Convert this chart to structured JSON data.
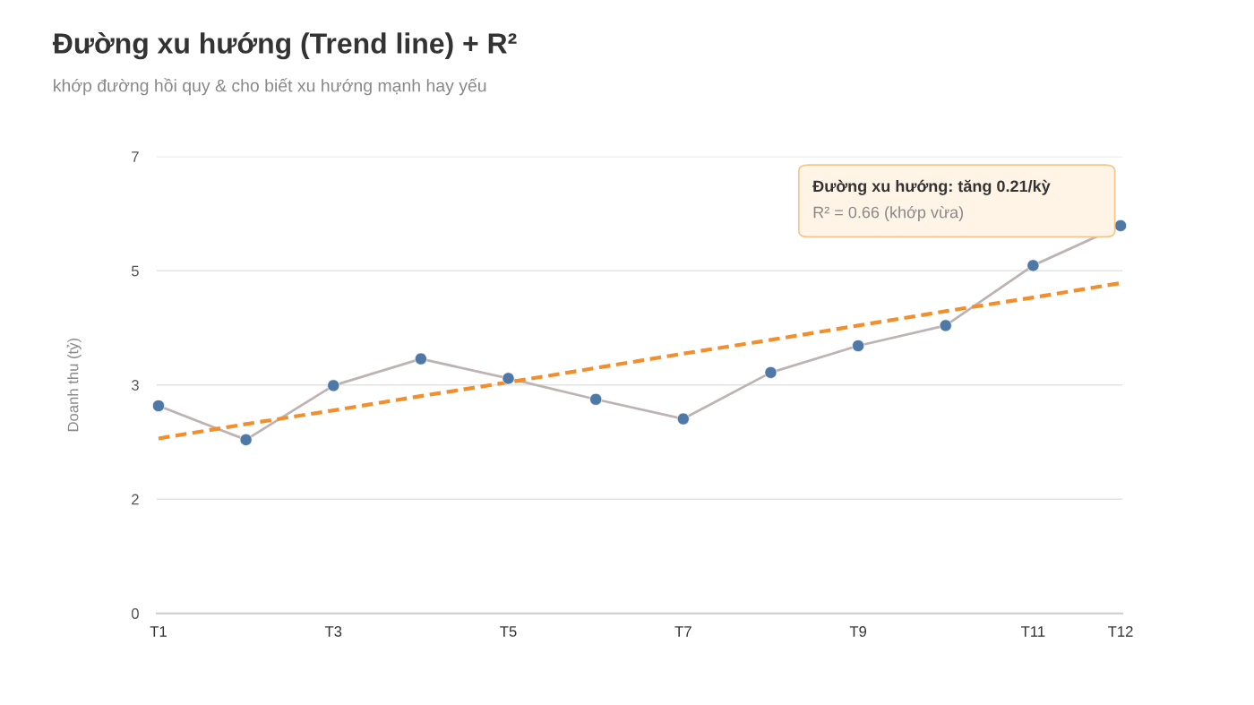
{
  "chart_data": {
    "type": "line",
    "title": "Đường xu hướng (Trend line) + R²",
    "subtitle": "khớp đường hồi quy & cho biết xu hướng mạnh hay yếu",
    "ylabel": "Doanh thu (tỷ)",
    "categories": [
      "T1",
      null,
      "T3",
      null,
      "T5",
      null,
      "T7",
      null,
      "T9",
      null,
      "T11",
      "T12"
    ],
    "series": [
      {
        "color": "#bdb3b3",
        "marker": "none",
        "line_style": "solid",
        "values": [
          3.18,
          2.66,
          3.49,
          3.9,
          3.6,
          3.28,
          2.98,
          3.69,
          4.1,
          4.41,
          5.33,
          5.94
        ]
      },
      {
        "type": "scatter",
        "color": "#4e79a7",
        "marker": "circle",
        "values": [
          3.18,
          2.66,
          3.49,
          3.9,
          3.6,
          3.28,
          2.98,
          3.69,
          4.1,
          4.41,
          5.33,
          5.94
        ]
      },
      {
        "color": "#f28e2b",
        "marker": "none",
        "line_style": "dashed",
        "values": [
          2.68,
          2.9,
          3.11,
          3.33,
          3.54,
          3.76,
          3.98,
          4.19,
          4.41,
          4.63,
          4.84,
          5.06
        ]
      }
    ],
    "ylim": [
      0,
      7
    ],
    "yticks": [
      0,
      {
        "value": 1.75,
        "label": "2"
      },
      {
        "value": 3.5,
        "label": "3"
      },
      {
        "value": 5.25,
        "label": "5"
      },
      7
    ],
    "grid": "y",
    "legend": false,
    "annotations": [
      "Đường xu hướng: tăng 0.21/kỳ",
      "R² = 0.66 (khớp vừa)"
    ]
  }
}
